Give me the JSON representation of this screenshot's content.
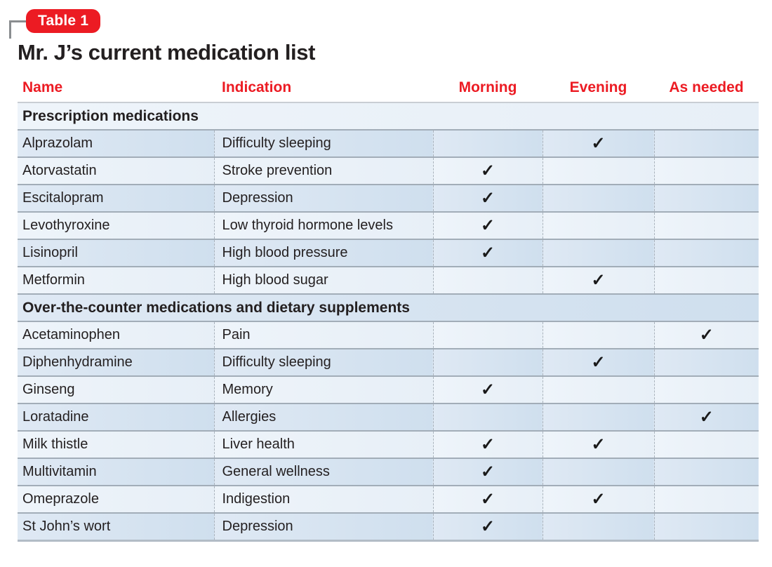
{
  "badge": {
    "label": "Table 1"
  },
  "title": "Mr. J’s current medication list",
  "colors": {
    "accent": "#ec1b23",
    "text": "#231f20",
    "row_light": "#e9f1f8",
    "row_dark": "#d3e1ef",
    "separator": "#a2adb8"
  },
  "table": {
    "columns": [
      {
        "key": "name",
        "label": "Name"
      },
      {
        "key": "indication",
        "label": "Indication"
      },
      {
        "key": "morning",
        "label": "Morning"
      },
      {
        "key": "evening",
        "label": "Evening"
      },
      {
        "key": "as_needed",
        "label": "As needed"
      }
    ],
    "check_glyph": "✓",
    "rows": [
      {
        "type": "section",
        "label": "Prescription medications"
      },
      {
        "type": "med",
        "name": "Alprazolam",
        "indication": "Difficulty sleeping",
        "morning": false,
        "evening": true,
        "as_needed": false
      },
      {
        "type": "med",
        "name": "Atorvastatin",
        "indication": "Stroke prevention",
        "morning": true,
        "evening": false,
        "as_needed": false
      },
      {
        "type": "med",
        "name": "Escitalopram",
        "indication": "Depression",
        "morning": true,
        "evening": false,
        "as_needed": false
      },
      {
        "type": "med",
        "name": "Levothyroxine",
        "indication": "Low thyroid hormone levels",
        "morning": true,
        "evening": false,
        "as_needed": false
      },
      {
        "type": "med",
        "name": "Lisinopril",
        "indication": "High blood pressure",
        "morning": true,
        "evening": false,
        "as_needed": false
      },
      {
        "type": "med",
        "name": "Metformin",
        "indication": "High blood sugar",
        "morning": false,
        "evening": true,
        "as_needed": false
      },
      {
        "type": "section",
        "label": "Over-the-counter medications and dietary supplements"
      },
      {
        "type": "med",
        "name": "Acetaminophen",
        "indication": "Pain",
        "morning": false,
        "evening": false,
        "as_needed": true
      },
      {
        "type": "med",
        "name": "Diphenhydramine",
        "indication": "Difficulty sleeping",
        "morning": false,
        "evening": true,
        "as_needed": false
      },
      {
        "type": "med",
        "name": "Ginseng",
        "indication": "Memory",
        "morning": true,
        "evening": false,
        "as_needed": false
      },
      {
        "type": "med",
        "name": "Loratadine",
        "indication": "Allergies",
        "morning": false,
        "evening": false,
        "as_needed": true
      },
      {
        "type": "med",
        "name": "Milk thistle",
        "indication": "Liver health",
        "morning": true,
        "evening": true,
        "as_needed": false
      },
      {
        "type": "med",
        "name": "Multivitamin",
        "indication": "General wellness",
        "morning": true,
        "evening": false,
        "as_needed": false
      },
      {
        "type": "med",
        "name": "Omeprazole",
        "indication": "Indigestion",
        "morning": true,
        "evening": true,
        "as_needed": false
      },
      {
        "type": "med",
        "name": "St John’s wort",
        "indication": "Depression",
        "morning": true,
        "evening": false,
        "as_needed": false
      }
    ]
  }
}
